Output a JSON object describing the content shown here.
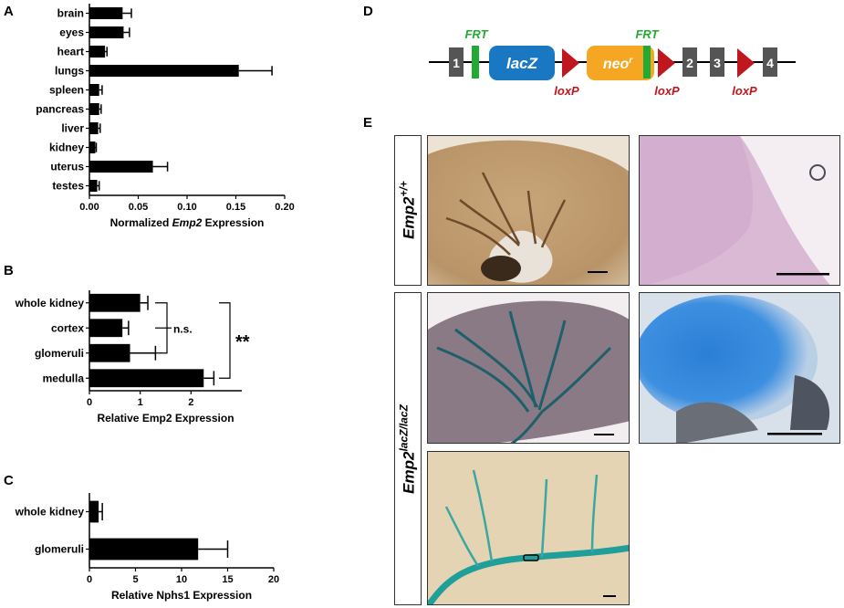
{
  "figure": {
    "panel_labels": [
      "A",
      "B",
      "C",
      "D",
      "E"
    ]
  },
  "chart_data": [
    {
      "type": "bar",
      "orientation": "horizontal",
      "panel": "A",
      "categories": [
        "brain",
        "eyes",
        "heart",
        "lungs",
        "spleen",
        "pancreas",
        "liver",
        "kidney",
        "uterus",
        "testes"
      ],
      "values": [
        0.034,
        0.035,
        0.016,
        0.153,
        0.01,
        0.01,
        0.009,
        0.006,
        0.065,
        0.008
      ],
      "errors": [
        0.009,
        0.006,
        0.002,
        0.034,
        0.003,
        0.002,
        0.002,
        0.001,
        0.015,
        0.002
      ],
      "xlabel_prefix": "Normalized ",
      "xlabel_italic": "Emp2",
      "xlabel_suffix": " Expression",
      "xlim": [
        0,
        0.2
      ],
      "xticks": [
        "0.00",
        "0.05",
        "0.10",
        "0.15",
        "0.20"
      ],
      "color": "#000000"
    },
    {
      "type": "bar",
      "orientation": "horizontal",
      "panel": "B",
      "categories": [
        "whole kidney",
        "cortex",
        "glomeruli",
        "medulla"
      ],
      "values": [
        1.0,
        0.65,
        0.8,
        2.25
      ],
      "errors": [
        0.15,
        0.12,
        0.5,
        0.2
      ],
      "xlabel": "Relative Emp2 Expression",
      "xlim": [
        0,
        3
      ],
      "xticks": [
        "0",
        "1",
        "2"
      ],
      "annotations": [
        "n.s.",
        "**"
      ],
      "color": "#000000"
    },
    {
      "type": "bar",
      "orientation": "horizontal",
      "panel": "C",
      "categories": [
        "whole kidney",
        "glomeruli"
      ],
      "values": [
        1.0,
        11.8
      ],
      "errors": [
        0.4,
        3.2
      ],
      "xlabel": "Relative Nphs1 Expression",
      "xlim": [
        0,
        20
      ],
      "xticks": [
        "0",
        "5",
        "10",
        "15",
        "20"
      ],
      "color": "#000000"
    }
  ],
  "construct": {
    "exons": [
      "1",
      "2",
      "3",
      "4"
    ],
    "lacz": "lacZ",
    "neo": "neo",
    "neo_sup": "r",
    "frt": "FRT",
    "loxp": "loxP",
    "colors": {
      "frt": "#22aa33",
      "lacz": "#1a78c2",
      "neo": "#f5a623",
      "loxp": "#c0161e",
      "exon": "#555555"
    }
  },
  "panelE": {
    "row1_gene": "Emp2",
    "row1_sup": "+/+",
    "row2_gene": "Emp2",
    "row2_sup": "lacZ/lacZ"
  }
}
